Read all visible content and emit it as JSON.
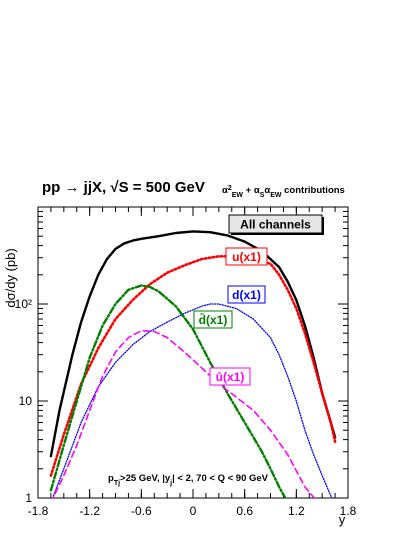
{
  "chart_data": {
    "type": "line",
    "title": "pp → jjX, √S = 500 GeV",
    "subtitle": "α²EW + αSαEW contributions",
    "ylabel": "dσ/dy (pb)",
    "xlabel": "y",
    "xlim": [
      -1.8,
      1.8
    ],
    "ylim": [
      1,
      1000
    ],
    "yscale": "log",
    "x_ticks": [
      "-1.8",
      "-1.2",
      "-0.6",
      "0",
      "0.6",
      "1.2",
      "1.8"
    ],
    "y_ticks": [
      "1",
      "10",
      "10²"
    ],
    "cut_annotation": "pTj>25 GeV, |yj| < 2, 70 < Q < 90 GeV",
    "series": [
      {
        "name": "All channels",
        "color": "#000000",
        "style": "solid",
        "x": [
          -1.65,
          -1.55,
          -1.4,
          -1.3,
          -1.2,
          -1.1,
          -1.0,
          -0.9,
          -0.8,
          -0.7,
          -0.6,
          -0.4,
          -0.2,
          0.0,
          0.2,
          0.4,
          0.6,
          0.8,
          1.0,
          1.1,
          1.2,
          1.3,
          1.4,
          1.5,
          1.6,
          1.65
        ],
        "y": [
          2.7,
          8.0,
          30,
          65,
          120,
          200,
          290,
          370,
          420,
          450,
          470,
          500,
          540,
          560,
          550,
          510,
          440,
          350,
          240,
          170,
          110,
          60,
          28,
          12,
          6,
          4.2
        ]
      },
      {
        "name": "u(x1)",
        "color": "#ff0000",
        "style": "dotted",
        "x": [
          -1.65,
          -1.5,
          -1.3,
          -1.1,
          -0.9,
          -0.7,
          -0.5,
          -0.3,
          -0.1,
          0.1,
          0.3,
          0.5,
          0.7,
          0.9,
          1.0,
          1.1,
          1.2,
          1.3,
          1.4,
          1.5,
          1.6,
          1.65
        ],
        "y": [
          1.7,
          4.5,
          15,
          35,
          70,
          110,
          160,
          210,
          250,
          290,
          310,
          310,
          290,
          260,
          200,
          140,
          90,
          50,
          25,
          12,
          6,
          3.8
        ]
      },
      {
        "name": "d(x1)",
        "color": "#0000ff",
        "style": "dotted",
        "x": [
          -1.62,
          -1.5,
          -1.3,
          -1.1,
          -0.9,
          -0.7,
          -0.5,
          -0.3,
          -0.1,
          0.1,
          0.2,
          0.3,
          0.5,
          0.7,
          0.9,
          1.0,
          1.1,
          1.2,
          1.3,
          1.4,
          1.5,
          1.6,
          1.65
        ],
        "y": [
          1.05,
          2.0,
          6,
          14,
          25,
          38,
          52,
          65,
          80,
          95,
          100,
          100,
          90,
          70,
          45,
          30,
          18,
          10,
          5,
          2.8,
          1.7,
          1.05,
          0.9
        ]
      },
      {
        "name": "d̄(x1)",
        "color": "#008000",
        "style": "dashdot",
        "x": [
          -1.65,
          -1.5,
          -1.35,
          -1.2,
          -1.05,
          -0.9,
          -0.75,
          -0.6,
          -0.5,
          -0.4,
          -0.2,
          0.0,
          0.2,
          0.4,
          0.6,
          0.8,
          0.9,
          1.0,
          1.1
        ],
        "y": [
          1.2,
          3.5,
          10,
          28,
          60,
          100,
          140,
          155,
          150,
          135,
          95,
          55,
          25,
          12,
          6,
          3,
          2,
          1.3,
          0.9
        ]
      },
      {
        "name": "ū(x1)",
        "color": "#ff00ff",
        "style": "dashed",
        "x": [
          -1.65,
          -1.5,
          -1.35,
          -1.2,
          -1.05,
          -0.9,
          -0.75,
          -0.6,
          -0.45,
          -0.3,
          -0.1,
          0.1,
          0.3,
          0.5,
          0.7,
          0.9,
          1.1,
          1.3,
          1.45
        ],
        "y": [
          0.9,
          1.7,
          3.5,
          8,
          18,
          32,
          45,
          53,
          52,
          45,
          32,
          22,
          15,
          11,
          8,
          5,
          2.8,
          1.3,
          0.9
        ]
      }
    ],
    "labels": [
      {
        "text": "All channels",
        "series": 0
      },
      {
        "text": "u(x1)",
        "series": 1
      },
      {
        "text": "d(x1)",
        "series": 2
      },
      {
        "text": "d̄(x1)",
        "series": 3
      },
      {
        "text": "ū(x1)",
        "series": 4
      }
    ]
  }
}
